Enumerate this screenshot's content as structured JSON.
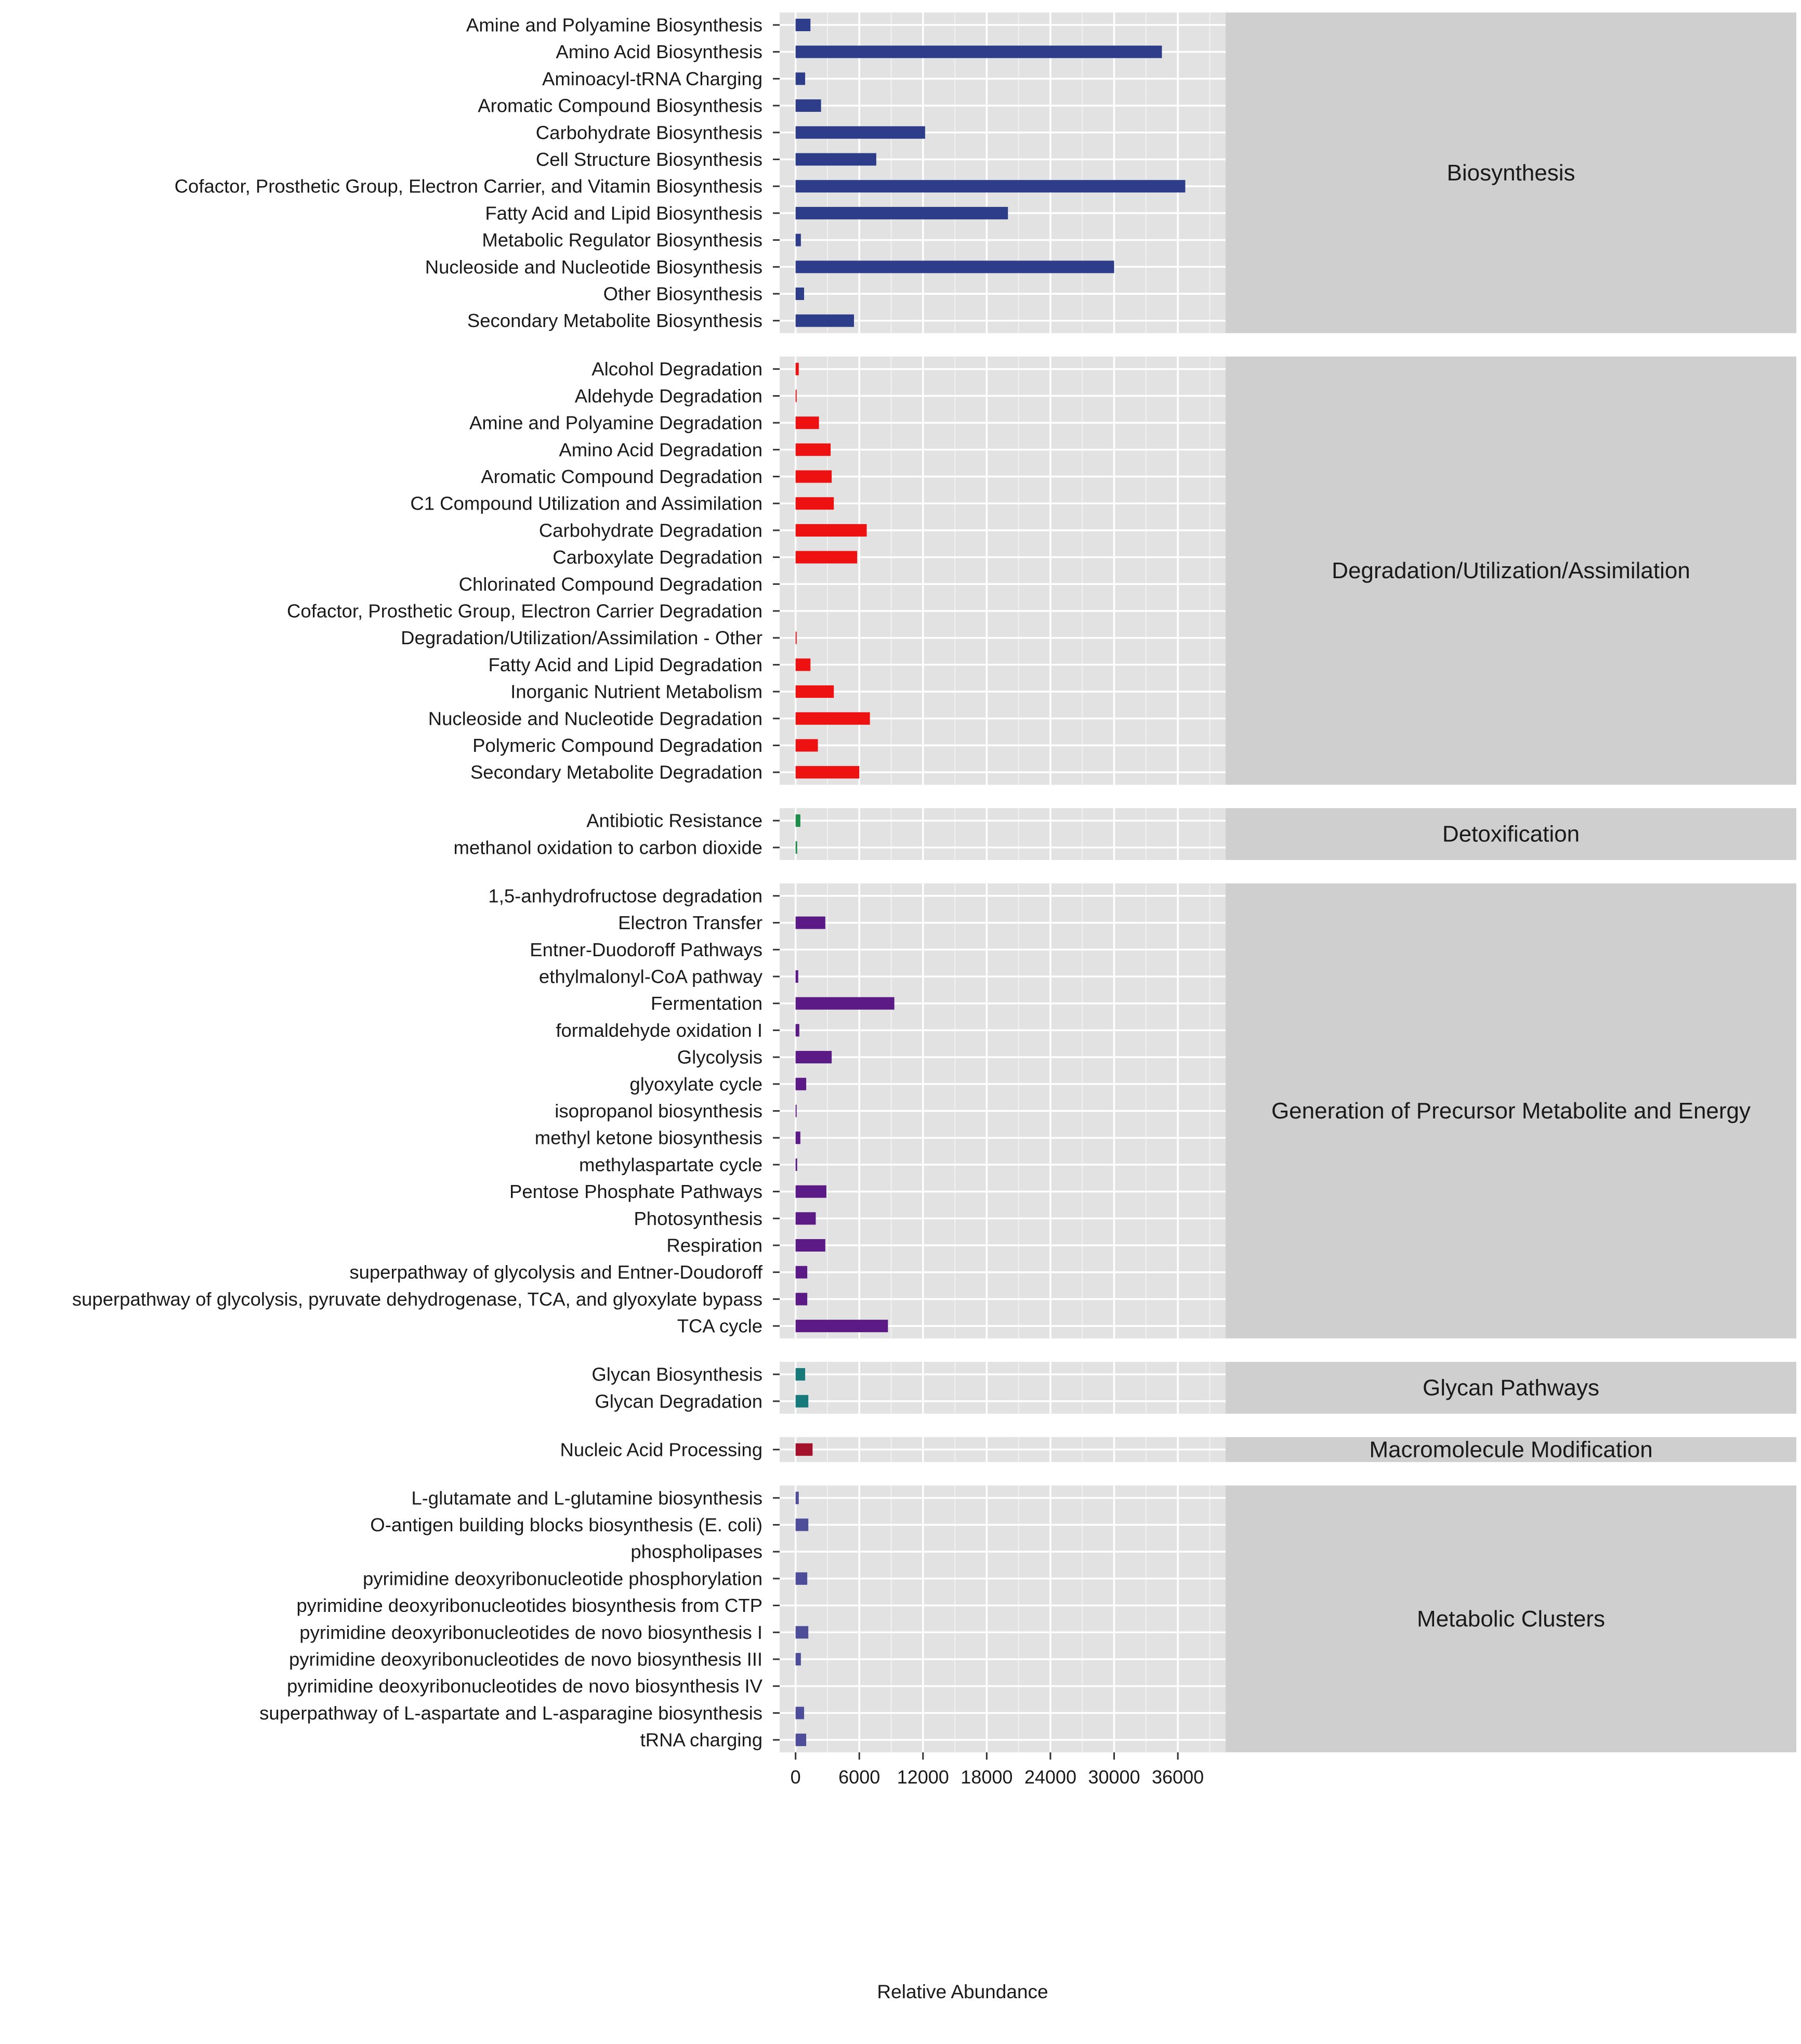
{
  "chart_data": {
    "type": "bar",
    "orientation": "horizontal",
    "faceted": true,
    "xlabel": "Relative Abundance",
    "xlim": [
      -1500,
      40500
    ],
    "xticks": [
      0,
      6000,
      12000,
      18000,
      24000,
      30000,
      36000
    ],
    "xtick_labels": [
      "0",
      "6000",
      "12000",
      "18000",
      "24000",
      "30000",
      "36000"
    ],
    "grid": true,
    "panels": [
      {
        "name": "Biosynthesis",
        "color": "#2E3D8A",
        "categories": [
          "Amine and Polyamine Biosynthesis",
          "Amino Acid Biosynthesis",
          "Aminoacyl-tRNA Charging",
          "Aromatic Compound Biosynthesis",
          "Carbohydrate Biosynthesis",
          "Cell Structure Biosynthesis",
          "Cofactor, Prosthetic Group, Electron Carrier, and Vitamin Biosynthesis",
          "Fatty Acid and Lipid Biosynthesis",
          "Metabolic Regulator Biosynthesis",
          "Nucleoside and Nucleotide Biosynthesis",
          "Other Biosynthesis",
          "Secondary Metabolite Biosynthesis"
        ],
        "values": [
          1400,
          34500,
          900,
          2400,
          12200,
          7600,
          36700,
          20000,
          500,
          30000,
          800,
          5500
        ]
      },
      {
        "name": "Degradation/Utilization/Assimilation",
        "color": "#EE1111",
        "categories": [
          "Alcohol Degradation",
          "Aldehyde Degradation",
          "Amine and Polyamine Degradation",
          "Amino Acid Degradation",
          "Aromatic Compound Degradation",
          "C1 Compound Utilization and Assimilation",
          "Carbohydrate Degradation",
          "Carboxylate Degradation",
          "Chlorinated Compound Degradation",
          "Cofactor, Prosthetic Group, Electron Carrier Degradation",
          "Degradation/Utilization/Assimilation - Other",
          "Fatty Acid and Lipid Degradation",
          "Inorganic Nutrient Metabolism",
          "Nucleoside and Nucleotide Degradation",
          "Polymeric Compound Degradation",
          "Secondary Metabolite Degradation"
        ],
        "values": [
          300,
          100,
          2200,
          3300,
          3400,
          3600,
          6700,
          5800,
          0,
          0,
          100,
          1400,
          3600,
          7000,
          2100,
          6000
        ]
      },
      {
        "name": "Detoxification",
        "color": "#1E8C4A",
        "categories": [
          "Antibiotic Resistance",
          "methanol oxidation to carbon dioxide"
        ],
        "values": [
          450,
          150
        ]
      },
      {
        "name": "Generation of Precursor Metabolite and Energy",
        "color": "#5B1A86",
        "categories": [
          "1,5-anhydrofructose degradation",
          "Electron Transfer",
          "Entner-Duodoroff Pathways",
          "ethylmalonyl-CoA pathway",
          "Fermentation",
          "formaldehyde oxidation I",
          "Glycolysis",
          "glyoxylate cycle",
          "isopropanol biosynthesis",
          "methyl ketone biosynthesis",
          "methylaspartate cycle",
          "Pentose Phosphate Pathways",
          "Photosynthesis",
          "Respiration",
          "superpathway of glycolysis and Entner-Doudoroff",
          "superpathway of glycolysis, pyruvate dehydrogenase, TCA, and glyoxylate bypass",
          "TCA cycle"
        ],
        "values": [
          0,
          2800,
          0,
          250,
          9300,
          350,
          3400,
          1000,
          80,
          450,
          150,
          2900,
          1900,
          2800,
          1100,
          1100,
          8700
        ]
      },
      {
        "name": "Glycan Pathways",
        "color": "#177A7A",
        "categories": [
          "Glycan Biosynthesis",
          "Glycan Degradation"
        ],
        "values": [
          900,
          1200
        ]
      },
      {
        "name": "Macromolecule Modification",
        "color": "#A3122A",
        "categories": [
          "Nucleic Acid Processing"
        ],
        "values": [
          1600
        ]
      },
      {
        "name": "Metabolic Clusters",
        "color": "#4D4D99",
        "categories": [
          "L-glutamate and L-glutamine biosynthesis",
          "O-antigen building blocks biosynthesis (E. coli)",
          "phospholipases",
          "pyrimidine deoxyribonucleotide phosphorylation",
          "pyrimidine deoxyribonucleotides biosynthesis from CTP",
          "pyrimidine deoxyribonucleotides de novo biosynthesis I",
          "pyrimidine deoxyribonucleotides de novo biosynthesis III",
          "pyrimidine deoxyribonucleotides de novo biosynthesis IV",
          "superpathway of L-aspartate and L-asparagine biosynthesis",
          "tRNA charging"
        ],
        "values": [
          300,
          1200,
          0,
          1100,
          0,
          1200,
          500,
          0,
          800,
          1000
        ]
      }
    ]
  }
}
